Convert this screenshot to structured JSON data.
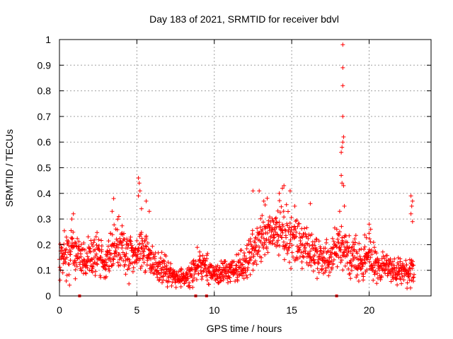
{
  "chart_data": {
    "type": "scatter",
    "title": "Day 183 of 2021, SRMTID for receiver bdvl",
    "xlabel": "GPS time / hours",
    "ylabel": "SRMTID / TECUs",
    "xlim": [
      0,
      24
    ],
    "ylim": [
      0,
      1
    ],
    "xticks": [
      "0",
      "5",
      "10",
      "15",
      "20"
    ],
    "yticks": [
      "0",
      "0.1",
      "0.2",
      "0.3",
      "0.4",
      "0.5",
      "0.6",
      "0.7",
      "0.8",
      "0.9",
      "1"
    ],
    "grid": true,
    "marker": "+",
    "color": "#ff0000",
    "trend": [
      [
        0.0,
        0.16,
        0.05
      ],
      [
        0.5,
        0.14,
        0.05
      ],
      [
        0.8,
        0.2,
        0.07
      ],
      [
        1.0,
        0.17,
        0.06
      ],
      [
        1.5,
        0.14,
        0.04
      ],
      [
        2.0,
        0.16,
        0.05
      ],
      [
        2.5,
        0.17,
        0.05
      ],
      [
        3.0,
        0.13,
        0.04
      ],
      [
        3.5,
        0.2,
        0.06
      ],
      [
        4.0,
        0.21,
        0.05
      ],
      [
        4.5,
        0.15,
        0.05
      ],
      [
        5.0,
        0.18,
        0.06
      ],
      [
        5.5,
        0.19,
        0.06
      ],
      [
        6.0,
        0.13,
        0.04
      ],
      [
        6.5,
        0.11,
        0.04
      ],
      [
        7.0,
        0.09,
        0.03
      ],
      [
        7.5,
        0.07,
        0.02
      ],
      [
        8.0,
        0.07,
        0.02
      ],
      [
        8.5,
        0.1,
        0.04
      ],
      [
        9.0,
        0.12,
        0.04
      ],
      [
        9.5,
        0.11,
        0.04
      ],
      [
        10.0,
        0.08,
        0.02
      ],
      [
        10.5,
        0.09,
        0.03
      ],
      [
        11.0,
        0.1,
        0.03
      ],
      [
        11.5,
        0.11,
        0.04
      ],
      [
        12.0,
        0.14,
        0.04
      ],
      [
        12.5,
        0.18,
        0.06
      ],
      [
        13.0,
        0.23,
        0.07
      ],
      [
        13.5,
        0.25,
        0.07
      ],
      [
        14.0,
        0.25,
        0.07
      ],
      [
        14.5,
        0.24,
        0.06
      ],
      [
        15.0,
        0.23,
        0.06
      ],
      [
        15.5,
        0.2,
        0.05
      ],
      [
        16.0,
        0.18,
        0.05
      ],
      [
        16.5,
        0.16,
        0.05
      ],
      [
        17.0,
        0.15,
        0.05
      ],
      [
        17.5,
        0.14,
        0.04
      ],
      [
        18.0,
        0.2,
        0.05
      ],
      [
        18.5,
        0.17,
        0.05
      ],
      [
        19.0,
        0.14,
        0.05
      ],
      [
        19.5,
        0.13,
        0.04
      ],
      [
        20.0,
        0.17,
        0.05
      ],
      [
        20.5,
        0.12,
        0.04
      ],
      [
        21.0,
        0.11,
        0.04
      ],
      [
        21.5,
        0.1,
        0.03
      ],
      [
        22.0,
        0.1,
        0.03
      ],
      [
        22.5,
        0.09,
        0.03
      ],
      [
        22.9,
        0.1,
        0.04
      ]
    ],
    "outliers": [
      [
        0.9,
        0.32
      ],
      [
        0.8,
        0.3
      ],
      [
        3.5,
        0.38
      ],
      [
        3.4,
        0.33
      ],
      [
        5.1,
        0.46
      ],
      [
        5.15,
        0.44
      ],
      [
        5.2,
        0.41
      ],
      [
        5.1,
        0.39
      ],
      [
        5.3,
        0.34
      ],
      [
        5.6,
        0.37
      ],
      [
        5.8,
        0.33
      ],
      [
        12.5,
        0.41
      ],
      [
        12.9,
        0.41
      ],
      [
        13.2,
        0.37
      ],
      [
        14.2,
        0.4
      ],
      [
        14.4,
        0.42
      ],
      [
        14.5,
        0.43
      ],
      [
        14.9,
        0.41
      ],
      [
        15.2,
        0.35
      ],
      [
        16.2,
        0.36
      ],
      [
        18.2,
        0.56
      ],
      [
        18.25,
        0.58
      ],
      [
        18.3,
        0.6
      ],
      [
        18.35,
        0.62
      ],
      [
        18.3,
        0.7
      ],
      [
        18.3,
        0.82
      ],
      [
        18.3,
        0.89
      ],
      [
        18.3,
        0.98
      ],
      [
        18.2,
        0.47
      ],
      [
        18.25,
        0.44
      ],
      [
        18.35,
        0.43
      ],
      [
        18.4,
        0.35
      ],
      [
        18.1,
        0.33
      ],
      [
        20.0,
        0.28
      ],
      [
        20.1,
        0.26
      ],
      [
        22.7,
        0.39
      ],
      [
        22.8,
        0.37
      ],
      [
        22.75,
        0.35
      ],
      [
        22.7,
        0.32
      ],
      [
        22.8,
        0.29
      ]
    ],
    "gap_markers_x": [
      1.3,
      8.8,
      9.5,
      17.9
    ]
  }
}
